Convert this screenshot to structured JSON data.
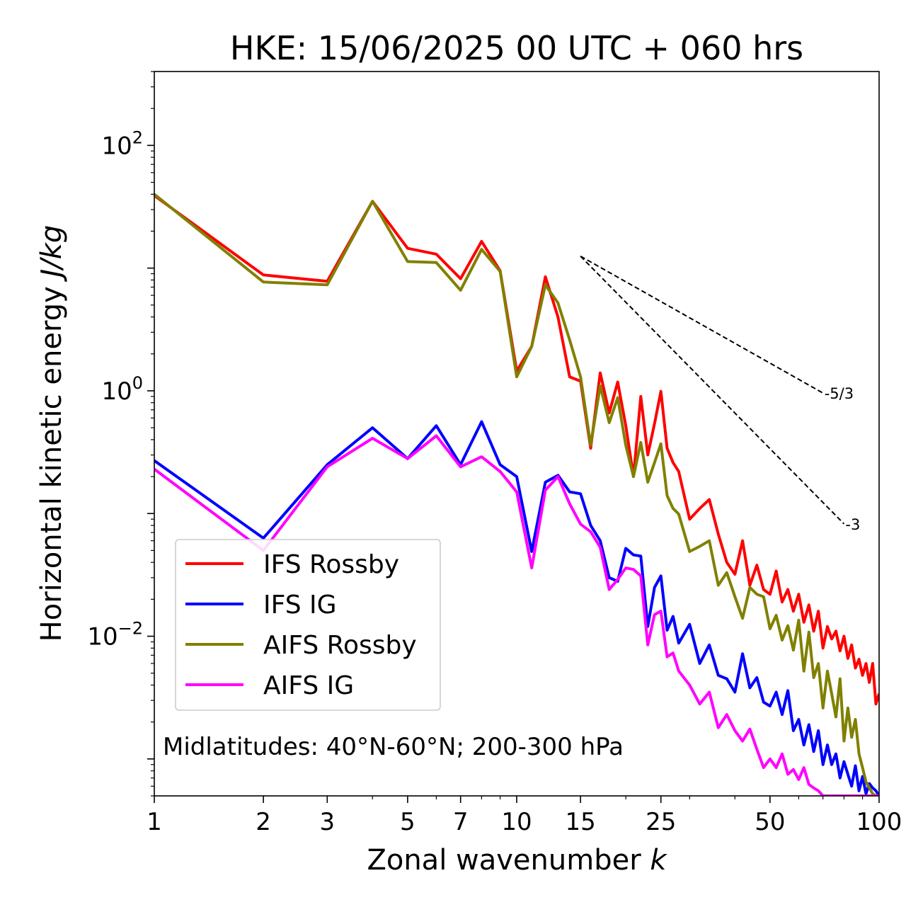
{
  "chart_data": {
    "type": "line",
    "title": "HKE: 15/06/2025 00 UTC + 060 hrs",
    "xlabel": "Zonal wavenumber",
    "xlabel_var": "k",
    "ylabel": "Horizontal kinetic energy",
    "ylabel_unit": "J/kg",
    "xscale": "log",
    "yscale": "log",
    "xlim": [
      1,
      100
    ],
    "ylim": [
      0.0005,
      400
    ],
    "x_ticks": [
      1,
      2,
      3,
      5,
      7,
      10,
      15,
      25,
      50,
      100
    ],
    "x_tick_labels": [
      "1",
      "2",
      "3",
      "5",
      "7",
      "10",
      "15",
      "25",
      "50",
      "100"
    ],
    "y_ticks": [
      0.01,
      1,
      100
    ],
    "y_tick_labels": [
      {
        "base": "10",
        "exp": "−2"
      },
      {
        "base": "10",
        "exp": "0"
      },
      {
        "base": "10",
        "exp": "2"
      }
    ],
    "annotation": "Midlatitudes: 40°N-60°N; 200-300 hPa",
    "legend_position": "lower-left",
    "grid": false,
    "reference_lines": [
      {
        "label": "-5/3",
        "slope": -1.6667,
        "x": [
          15,
          70
        ],
        "y_start": 12.5
      },
      {
        "label": "-3",
        "slope": -3,
        "x": [
          15,
          80
        ],
        "y_start": 12.5
      }
    ],
    "series": [
      {
        "name": "IFS Rossby",
        "color": "#ff0000",
        "points": [
          [
            1,
            39
          ],
          [
            2,
            8.8
          ],
          [
            3,
            7.8
          ],
          [
            4,
            35
          ],
          [
            5,
            14.5
          ],
          [
            6,
            13
          ],
          [
            7,
            8.2
          ],
          [
            8,
            16.5
          ],
          [
            9,
            9.5
          ],
          [
            10,
            1.45
          ],
          [
            11,
            2.3
          ],
          [
            12,
            8.5
          ],
          [
            13,
            4
          ],
          [
            14,
            1.3
          ],
          [
            15,
            1.2
          ],
          [
            16,
            0.34
          ],
          [
            17,
            1.4
          ],
          [
            18,
            0.66
          ],
          [
            19,
            1.18
          ],
          [
            20,
            0.52
          ],
          [
            21,
            0.2
          ],
          [
            22,
            0.9
          ],
          [
            23,
            0.3
          ],
          [
            24,
            0.54
          ],
          [
            25,
            0.99
          ],
          [
            26,
            0.34
          ],
          [
            27,
            0.26
          ],
          [
            28,
            0.22
          ],
          [
            30,
            0.09
          ],
          [
            32,
            0.11
          ],
          [
            34,
            0.13
          ],
          [
            36,
            0.068
          ],
          [
            38,
            0.04
          ],
          [
            40,
            0.032
          ],
          [
            42,
            0.06
          ],
          [
            44,
            0.026
          ],
          [
            46,
            0.038
          ],
          [
            48,
            0.024
          ],
          [
            50,
            0.022
          ],
          [
            52,
            0.034
          ],
          [
            54,
            0.019
          ],
          [
            56,
            0.024
          ],
          [
            58,
            0.016
          ],
          [
            60,
            0.022
          ],
          [
            62,
            0.013
          ],
          [
            64,
            0.018
          ],
          [
            66,
            0.011
          ],
          [
            68,
            0.016
          ],
          [
            70,
            0.008
          ],
          [
            72,
            0.012
          ],
          [
            74,
            0.0095
          ],
          [
            76,
            0.011
          ],
          [
            78,
            0.0076
          ],
          [
            80,
            0.01
          ],
          [
            82,
            0.0066
          ],
          [
            84,
            0.0085
          ],
          [
            86,
            0.0055
          ],
          [
            88,
            0.0065
          ],
          [
            90,
            0.0048
          ],
          [
            92,
            0.006
          ],
          [
            94,
            0.0042
          ],
          [
            96,
            0.006
          ],
          [
            98,
            0.0028
          ],
          [
            100,
            0.0034
          ]
        ]
      },
      {
        "name": "IFS IG",
        "color": "#0000ff",
        "points": [
          [
            1,
            0.27
          ],
          [
            2,
            0.063
          ],
          [
            3,
            0.25
          ],
          [
            4,
            0.5
          ],
          [
            5,
            0.28
          ],
          [
            6,
            0.52
          ],
          [
            7,
            0.25
          ],
          [
            8,
            0.56
          ],
          [
            9,
            0.25
          ],
          [
            10,
            0.2
          ],
          [
            11,
            0.049
          ],
          [
            12,
            0.18
          ],
          [
            13,
            0.205
          ],
          [
            14,
            0.15
          ],
          [
            15,
            0.145
          ],
          [
            16,
            0.08
          ],
          [
            17,
            0.06
          ],
          [
            18,
            0.03
          ],
          [
            19,
            0.028
          ],
          [
            20,
            0.052
          ],
          [
            21,
            0.046
          ],
          [
            22,
            0.045
          ],
          [
            23,
            0.012
          ],
          [
            24,
            0.025
          ],
          [
            25,
            0.031
          ],
          [
            26,
            0.0112
          ],
          [
            27,
            0.0145
          ],
          [
            28,
            0.0088
          ],
          [
            30,
            0.0125
          ],
          [
            32,
            0.006
          ],
          [
            34,
            0.0085
          ],
          [
            36,
            0.0048
          ],
          [
            38,
            0.0045
          ],
          [
            40,
            0.0035
          ],
          [
            42,
            0.0072
          ],
          [
            44,
            0.0038
          ],
          [
            46,
            0.0046
          ],
          [
            48,
            0.0029
          ],
          [
            50,
            0.0027
          ],
          [
            52,
            0.0035
          ],
          [
            54,
            0.0023
          ],
          [
            56,
            0.0036
          ],
          [
            58,
            0.0017
          ],
          [
            60,
            0.0021
          ],
          [
            62,
            0.0013
          ],
          [
            64,
            0.0019
          ],
          [
            66,
            0.00115
          ],
          [
            68,
            0.0017
          ],
          [
            70,
            0.0009
          ],
          [
            72,
            0.0013
          ],
          [
            74,
            0.0009
          ],
          [
            76,
            0.0011
          ],
          [
            78,
            0.0007
          ],
          [
            80,
            0.00095
          ],
          [
            82,
            0.00075
          ],
          [
            84,
            0.0006
          ],
          [
            86,
            0.00088
          ],
          [
            88,
            0.00055
          ],
          [
            90,
            0.00072
          ],
          [
            92,
            0.00052
          ],
          [
            94,
            0.00063
          ],
          [
            96,
            0.00058
          ],
          [
            98,
            0.00055
          ],
          [
            100,
            0.0005
          ]
        ]
      },
      {
        "name": "AIFS Rossby",
        "color": "#808000",
        "points": [
          [
            1,
            40
          ],
          [
            2,
            7.7
          ],
          [
            3,
            7.3
          ],
          [
            4,
            35
          ],
          [
            5,
            11.3
          ],
          [
            6,
            11.1
          ],
          [
            7,
            6.6
          ],
          [
            8,
            14.2
          ],
          [
            9,
            9.4
          ],
          [
            10,
            1.3
          ],
          [
            11,
            2.3
          ],
          [
            12,
            7.3
          ],
          [
            13,
            5.2
          ],
          [
            14,
            2.6
          ],
          [
            15,
            1.3
          ],
          [
            16,
            0.36
          ],
          [
            17,
            1.1
          ],
          [
            18,
            0.55
          ],
          [
            19,
            0.88
          ],
          [
            20,
            0.36
          ],
          [
            21,
            0.2
          ],
          [
            22,
            0.38
          ],
          [
            23,
            0.18
          ],
          [
            24,
            0.26
          ],
          [
            25,
            0.37
          ],
          [
            26,
            0.14
          ],
          [
            27,
            0.11
          ],
          [
            28,
            0.099
          ],
          [
            30,
            0.049
          ],
          [
            32,
            0.054
          ],
          [
            34,
            0.06
          ],
          [
            36,
            0.026
          ],
          [
            38,
            0.033
          ],
          [
            40,
            0.021
          ],
          [
            42,
            0.014
          ],
          [
            44,
            0.025
          ],
          [
            46,
            0.022
          ],
          [
            48,
            0.021
          ],
          [
            50,
            0.0115
          ],
          [
            52,
            0.0148
          ],
          [
            54,
            0.0093
          ],
          [
            56,
            0.0122
          ],
          [
            58,
            0.0077
          ],
          [
            60,
            0.0135
          ],
          [
            62,
            0.0052
          ],
          [
            64,
            0.0108
          ],
          [
            66,
            0.0046
          ],
          [
            68,
            0.006
          ],
          [
            70,
            0.0026
          ],
          [
            72,
            0.0052
          ],
          [
            74,
            0.0034
          ],
          [
            76,
            0.0022
          ],
          [
            78,
            0.0045
          ],
          [
            80,
            0.0014
          ],
          [
            82,
            0.0026
          ],
          [
            84,
            0.0015
          ],
          [
            86,
            0.0021
          ],
          [
            88,
            0.0011
          ],
          [
            90,
            0.00085
          ],
          [
            92,
            0.00065
          ],
          [
            94,
            0.00058
          ],
          [
            96,
            0.00052
          ],
          [
            98,
            0.0005
          ],
          [
            100,
            0.0005
          ]
        ]
      },
      {
        "name": "AIFS IG",
        "color": "#ff00ff",
        "points": [
          [
            1,
            0.23
          ],
          [
            2,
            0.05
          ],
          [
            3,
            0.24
          ],
          [
            4,
            0.41
          ],
          [
            5,
            0.28
          ],
          [
            6,
            0.43
          ],
          [
            7,
            0.24
          ],
          [
            8,
            0.29
          ],
          [
            9,
            0.22
          ],
          [
            10,
            0.15
          ],
          [
            11,
            0.036
          ],
          [
            12,
            0.155
          ],
          [
            13,
            0.2
          ],
          [
            14,
            0.12
          ],
          [
            15,
            0.082
          ],
          [
            16,
            0.071
          ],
          [
            17,
            0.053
          ],
          [
            18,
            0.024
          ],
          [
            19,
            0.029
          ],
          [
            20,
            0.036
          ],
          [
            21,
            0.035
          ],
          [
            22,
            0.031
          ],
          [
            23,
            0.0085
          ],
          [
            24,
            0.015
          ],
          [
            25,
            0.016
          ],
          [
            26,
            0.0068
          ],
          [
            27,
            0.0073
          ],
          [
            28,
            0.0052
          ],
          [
            30,
            0.004
          ],
          [
            32,
            0.0028
          ],
          [
            34,
            0.0035
          ],
          [
            36,
            0.0018
          ],
          [
            38,
            0.0023
          ],
          [
            40,
            0.0017
          ],
          [
            42,
            0.0014
          ],
          [
            44,
            0.00175
          ],
          [
            46,
            0.0012
          ],
          [
            48,
            0.00085
          ],
          [
            50,
            0.001
          ],
          [
            52,
            0.00085
          ],
          [
            54,
            0.0011
          ],
          [
            56,
            0.00075
          ],
          [
            58,
            0.00082
          ],
          [
            60,
            0.00068
          ],
          [
            62,
            0.00085
          ],
          [
            64,
            0.00062
          ],
          [
            66,
            0.00058
          ],
          [
            68,
            0.00055
          ],
          [
            70,
            0.0005
          ],
          [
            72,
            0.0005
          ],
          [
            74,
            0.0005
          ],
          [
            76,
            0.0005
          ],
          [
            78,
            0.0005
          ],
          [
            80,
            0.0005
          ],
          [
            82,
            0.0005
          ],
          [
            84,
            0.0005
          ],
          [
            86,
            0.0005
          ],
          [
            88,
            0.0005
          ],
          [
            90,
            0.0005
          ],
          [
            92,
            0.0005
          ],
          [
            94,
            0.0005
          ],
          [
            96,
            0.0005
          ],
          [
            98,
            0.0005
          ],
          [
            100,
            0.0005
          ]
        ]
      }
    ]
  }
}
